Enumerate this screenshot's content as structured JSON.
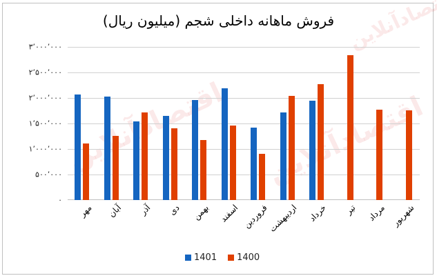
{
  "chart_data": {
    "type": "bar",
    "title": "فروش ماهانه داخلی شجم (میلیون ریال)",
    "xlabel": "",
    "ylabel": "",
    "ylim": [
      0,
      3000000
    ],
    "grid": true,
    "legend_position": "bottom",
    "y_tick_labels": [
      "۰",
      "۵۰۰٬۰۰۰",
      "۱٬۰۰۰٬۰۰۰",
      "۱٬۵۰۰٬۰۰۰",
      "۲٬۰۰۰٬۰۰۰",
      "۲٬۵۰۰٬۰۰۰",
      "۳٬۰۰۰٬۰۰۰"
    ],
    "y_tick_values": [
      0,
      500000,
      1000000,
      1500000,
      2000000,
      2500000,
      3000000
    ],
    "categories": [
      "مهر",
      "آبان",
      "آذر",
      "دی",
      "بهمن",
      "اسفند",
      "فروردین",
      "اردیبهشت",
      "خرداد",
      "تیر",
      "مرداد",
      "شهریور"
    ],
    "series": [
      {
        "name": "1401",
        "color": "#1565c0",
        "values": [
          2070000,
          2030000,
          1540000,
          1650000,
          1960000,
          2190000,
          1420000,
          1710000,
          1950000,
          null,
          null,
          null
        ]
      },
      {
        "name": "1400",
        "color": "#e04000",
        "values": [
          1110000,
          1260000,
          1710000,
          1400000,
          1180000,
          1460000,
          910000,
          2040000,
          2270000,
          2840000,
          1770000,
          1760000
        ]
      }
    ]
  },
  "legend": {
    "items": [
      {
        "label": "1401",
        "color": "#1565c0"
      },
      {
        "label": "1400",
        "color": "#e04000"
      }
    ]
  },
  "watermark": {
    "text": "اقتصادآنلاین",
    "subtext": "EGHTESADONLINE"
  }
}
